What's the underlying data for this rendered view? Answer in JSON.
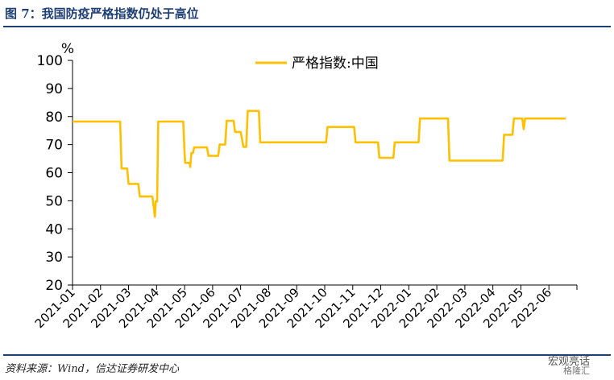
{
  "figure_title": "图 7：我国防疫严格指数仍处于高位",
  "source": "资料来源：Wind，信达证券研发中心",
  "watermark": "宏观亮话",
  "watermark2": "格隆汇",
  "colors": {
    "line": "#FFC000",
    "rule": "#1f3f73"
  },
  "chart_data": {
    "type": "line",
    "ylabel": "%",
    "ylim": [
      20,
      100
    ],
    "yticks": [
      20,
      30,
      40,
      50,
      60,
      70,
      80,
      90,
      100
    ],
    "categories": [
      "2021-01",
      "2021-02",
      "2021-03",
      "2021-04",
      "2021-05",
      "2021-06",
      "2021-07",
      "2021-08",
      "2021-09",
      "2021-10",
      "2021-11",
      "2021-12",
      "2022-01",
      "2022-02",
      "2022-03",
      "2022-04",
      "2022-05",
      "2022-06"
    ],
    "legend_position": "top-center",
    "series": [
      {
        "name": "严格指数:中国",
        "x": [
          0,
          1.7,
          1.75,
          1.95,
          2.0,
          2.35,
          2.4,
          2.85,
          2.9,
          2.94,
          2.97,
          3.02,
          3.06,
          3.1,
          3.14,
          3.95,
          4.0,
          4.02,
          4.06,
          4.18,
          4.2,
          4.24,
          4.3,
          4.34,
          4.4,
          4.45,
          4.8,
          4.85,
          5.2,
          5.25,
          5.45,
          5.5,
          5.75,
          5.8,
          6.0,
          6.1,
          6.2,
          6.25,
          6.65,
          6.7,
          9.05,
          9.1,
          10.05,
          10.1,
          10.9,
          10.95,
          11.45,
          11.5,
          12.35,
          12.4,
          13.4,
          13.45,
          15.35,
          15.4,
          15.7,
          15.75,
          16.05,
          16.1,
          16.15,
          16.2,
          17.6
        ],
        "values": [
          78.2,
          78.2,
          61.5,
          61.5,
          56,
          56,
          51.5,
          51.5,
          47.5,
          44.3,
          49.8,
          49.8,
          78.2,
          78.2,
          78.2,
          78.2,
          67,
          63.5,
          63.5,
          63.5,
          62,
          67,
          67,
          69,
          69,
          69,
          69,
          66,
          66,
          70,
          70,
          78.5,
          78.5,
          74.5,
          74.5,
          69.2,
          69.2,
          82,
          82,
          70.8,
          70.8,
          76.3,
          76.3,
          70.8,
          70.8,
          65.3,
          65.3,
          70.8,
          70.8,
          79.3,
          79.3,
          64.3,
          64.3,
          73.5,
          73.5,
          79.3,
          79.3,
          75.5,
          79.3,
          79.3,
          79.3
        ]
      }
    ]
  }
}
